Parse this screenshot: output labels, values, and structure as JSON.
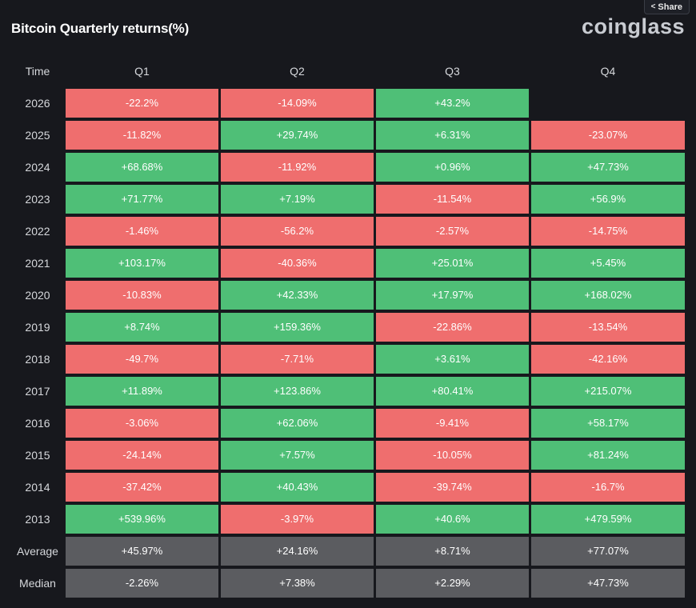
{
  "header": {
    "title": "Bitcoin Quarterly returns(%)",
    "brand": "coinglass",
    "share_label": "Share",
    "share_icon": "share-icon"
  },
  "colors": {
    "positive": "#4fbf77",
    "negative": "#ef6e6e",
    "stat": "#5b5c60",
    "background": "#17181d"
  },
  "table": {
    "columns": [
      "Time",
      "Q1",
      "Q2",
      "Q3",
      "Q4"
    ],
    "rows": [
      {
        "label": "2026",
        "values": [
          "-22.2%",
          "-14.09%",
          "+43.2%",
          ""
        ]
      },
      {
        "label": "2025",
        "values": [
          "-11.82%",
          "+29.74%",
          "+6.31%",
          "-23.07%"
        ]
      },
      {
        "label": "2024",
        "values": [
          "+68.68%",
          "-11.92%",
          "+0.96%",
          "+47.73%"
        ]
      },
      {
        "label": "2023",
        "values": [
          "+71.77%",
          "+7.19%",
          "-11.54%",
          "+56.9%"
        ]
      },
      {
        "label": "2022",
        "values": [
          "-1.46%",
          "-56.2%",
          "-2.57%",
          "-14.75%"
        ]
      },
      {
        "label": "2021",
        "values": [
          "+103.17%",
          "-40.36%",
          "+25.01%",
          "+5.45%"
        ]
      },
      {
        "label": "2020",
        "values": [
          "-10.83%",
          "+42.33%",
          "+17.97%",
          "+168.02%"
        ]
      },
      {
        "label": "2019",
        "values": [
          "+8.74%",
          "+159.36%",
          "-22.86%",
          "-13.54%"
        ]
      },
      {
        "label": "2018",
        "values": [
          "-49.7%",
          "-7.71%",
          "+3.61%",
          "-42.16%"
        ]
      },
      {
        "label": "2017",
        "values": [
          "+11.89%",
          "+123.86%",
          "+80.41%",
          "+215.07%"
        ]
      },
      {
        "label": "2016",
        "values": [
          "-3.06%",
          "+62.06%",
          "-9.41%",
          "+58.17%"
        ]
      },
      {
        "label": "2015",
        "values": [
          "-24.14%",
          "+7.57%",
          "-10.05%",
          "+81.24%"
        ]
      },
      {
        "label": "2014",
        "values": [
          "-37.42%",
          "+40.43%",
          "-39.74%",
          "-16.7%"
        ]
      },
      {
        "label": "2013",
        "values": [
          "+539.96%",
          "-3.97%",
          "+40.6%",
          "+479.59%"
        ]
      }
    ],
    "stats": [
      {
        "label": "Average",
        "values": [
          "+45.97%",
          "+24.16%",
          "+8.71%",
          "+77.07%"
        ]
      },
      {
        "label": "Median",
        "values": [
          "-2.26%",
          "+7.38%",
          "+2.29%",
          "+47.73%"
        ]
      }
    ]
  }
}
